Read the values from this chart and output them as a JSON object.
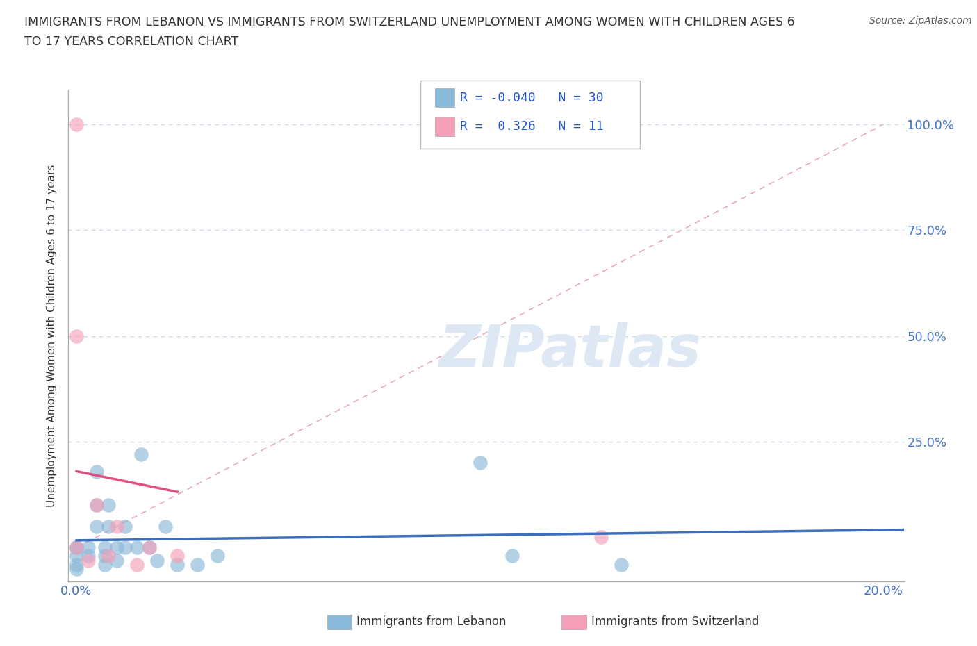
{
  "title_line1": "IMMIGRANTS FROM LEBANON VS IMMIGRANTS FROM SWITZERLAND UNEMPLOYMENT AMONG WOMEN WITH CHILDREN AGES 6",
  "title_line2": "TO 17 YEARS CORRELATION CHART",
  "source": "Source: ZipAtlas.com",
  "ylabel": "Unemployment Among Women with Children Ages 6 to 17 years",
  "xlim": [
    -0.002,
    0.205
  ],
  "ylim": [
    -0.08,
    1.08
  ],
  "ytick_vals": [
    0.25,
    0.5,
    0.75,
    1.0
  ],
  "right_ytick_labels": [
    "25.0%",
    "50.0%",
    "75.0%",
    "100.0%"
  ],
  "lebanon_color": "#8ab8d8",
  "switzerland_color": "#f4a0b8",
  "lebanon_R": -0.04,
  "lebanon_N": 30,
  "switzerland_R": 0.326,
  "switzerland_N": 11,
  "legend_R_color": "#2255cc",
  "lebanon_x": [
    0.0,
    0.0,
    0.0,
    0.0,
    0.0,
    0.003,
    0.003,
    0.005,
    0.005,
    0.005,
    0.007,
    0.007,
    0.007,
    0.008,
    0.008,
    0.01,
    0.01,
    0.012,
    0.012,
    0.015,
    0.016,
    0.018,
    0.02,
    0.022,
    0.025,
    0.03,
    0.035,
    0.1,
    0.108,
    0.135
  ],
  "lebanon_y": [
    0.0,
    0.0,
    -0.02,
    -0.04,
    -0.05,
    0.0,
    -0.02,
    0.05,
    0.1,
    0.18,
    0.0,
    -0.02,
    -0.04,
    0.05,
    0.1,
    0.0,
    -0.03,
    0.0,
    0.05,
    0.0,
    0.22,
    0.0,
    -0.03,
    0.05,
    -0.04,
    -0.04,
    -0.02,
    0.2,
    -0.02,
    -0.04
  ],
  "switzerland_x": [
    0.0,
    0.0,
    0.0,
    0.003,
    0.005,
    0.008,
    0.01,
    0.015,
    0.018,
    0.025,
    0.13
  ],
  "switzerland_y": [
    0.0,
    0.5,
    1.0,
    -0.03,
    0.1,
    -0.02,
    0.05,
    -0.04,
    0.0,
    -0.02,
    0.025
  ],
  "background_color": "#ffffff",
  "grid_color": "#c8d8e8",
  "trend_line_lebanon_color": "#3d6ebc",
  "trend_line_switzerland_color": "#e05080",
  "diag_line_color": "#e8a0b0",
  "watermark_color": "#dde8f4"
}
